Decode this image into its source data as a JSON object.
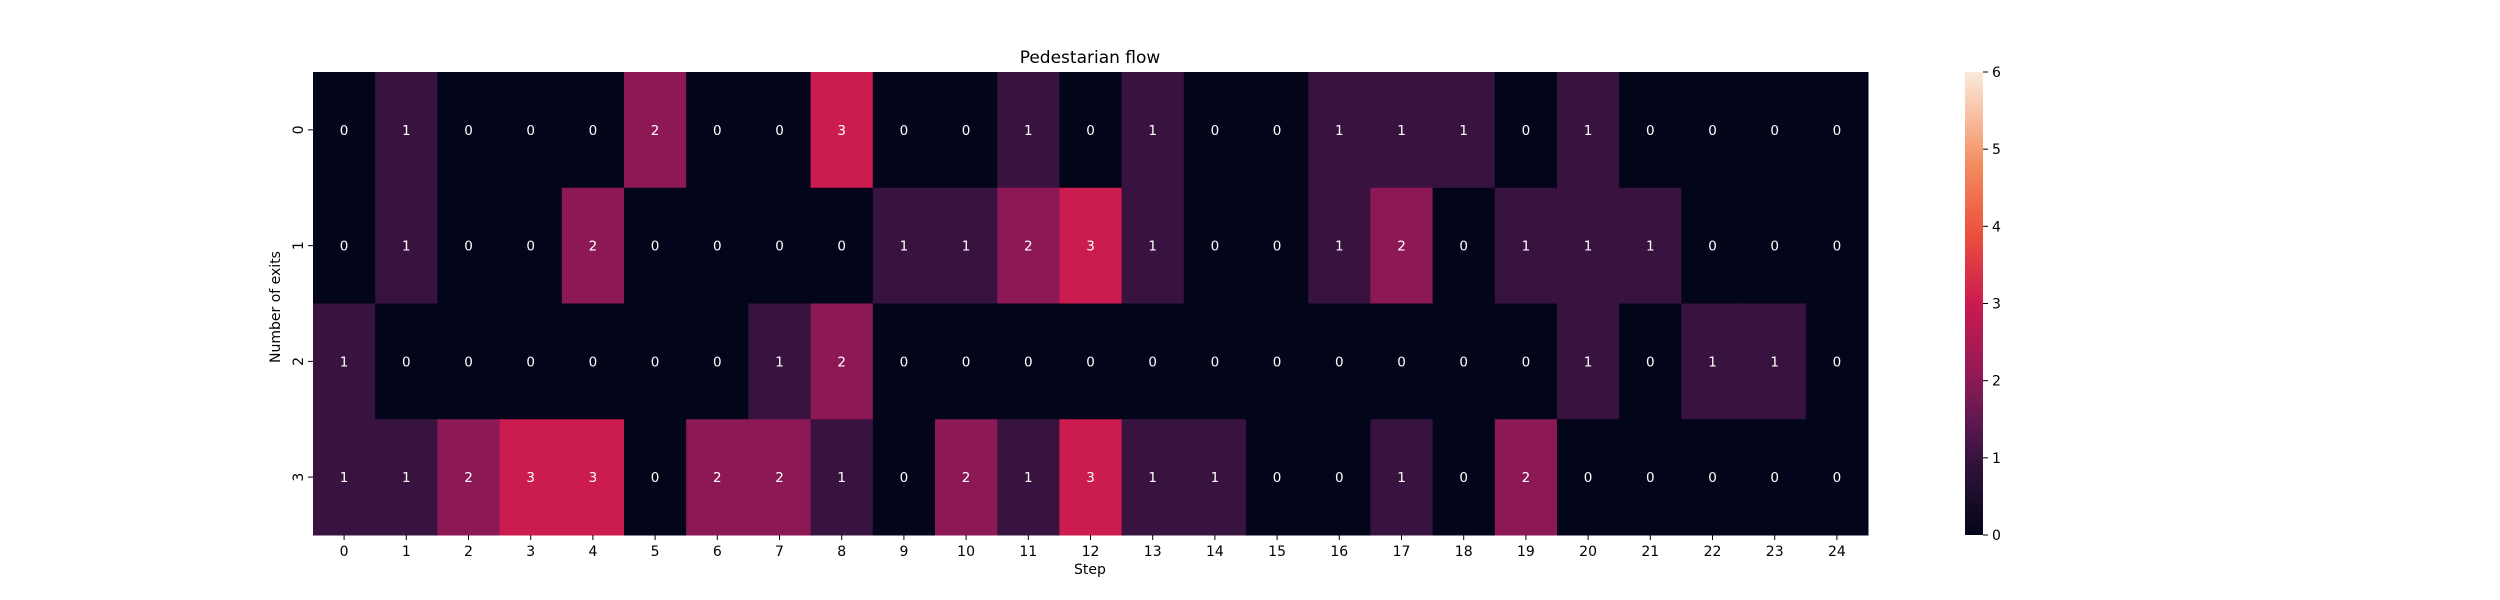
{
  "chart_data": {
    "type": "heatmap",
    "title": "Pedestarian flow",
    "xlabel": "Step",
    "ylabel": "Number of exits",
    "x_categories": [
      "0",
      "1",
      "2",
      "3",
      "4",
      "5",
      "6",
      "7",
      "8",
      "9",
      "10",
      "11",
      "12",
      "13",
      "14",
      "15",
      "16",
      "17",
      "18",
      "19",
      "20",
      "21",
      "22",
      "23",
      "24"
    ],
    "y_categories": [
      "0",
      "1",
      "2",
      "3"
    ],
    "values": [
      [
        0,
        1,
        0,
        0,
        0,
        2,
        0,
        0,
        3,
        0,
        0,
        1,
        0,
        1,
        0,
        0,
        1,
        1,
        1,
        0,
        1,
        0,
        0,
        0,
        0
      ],
      [
        0,
        1,
        0,
        0,
        2,
        0,
        0,
        0,
        0,
        1,
        1,
        2,
        3,
        1,
        0,
        0,
        1,
        2,
        0,
        1,
        1,
        1,
        0,
        0,
        0
      ],
      [
        1,
        0,
        0,
        0,
        0,
        0,
        0,
        1,
        2,
        0,
        0,
        0,
        0,
        0,
        0,
        0,
        0,
        0,
        0,
        0,
        1,
        0,
        1,
        1,
        0
      ],
      [
        1,
        1,
        2,
        3,
        3,
        0,
        2,
        2,
        1,
        0,
        2,
        1,
        3,
        1,
        1,
        0,
        0,
        1,
        0,
        2,
        0,
        0,
        0,
        0,
        0
      ]
    ],
    "annotations_shown": true,
    "colormap": "rocket",
    "colorbar": {
      "range": [
        0,
        6
      ],
      "ticks": [
        "0",
        "1",
        "2",
        "3",
        "4",
        "5",
        "6"
      ]
    },
    "grid": false,
    "legend": "none"
  }
}
